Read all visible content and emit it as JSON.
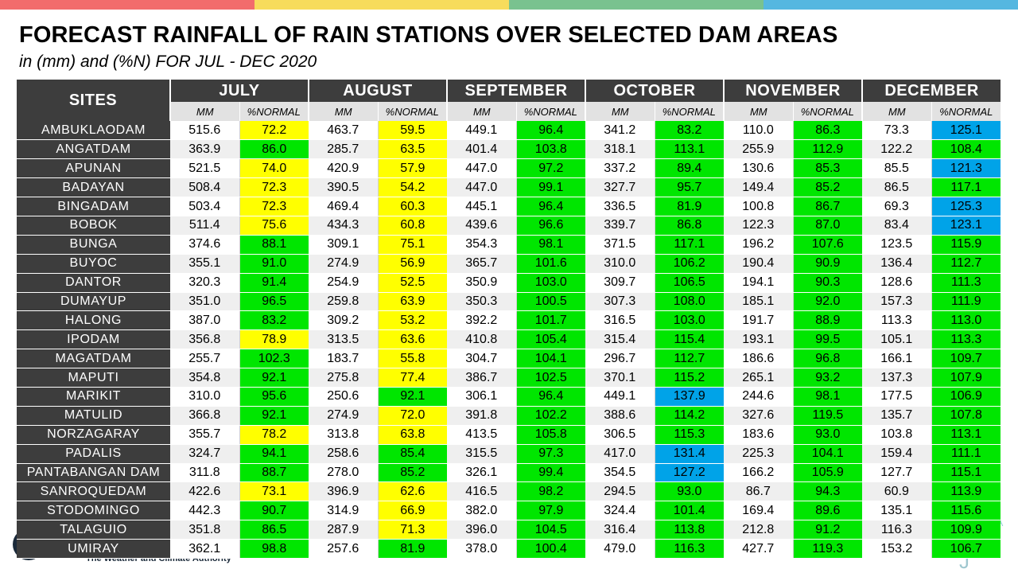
{
  "header": {
    "title": "FORECAST RAINFALL OF RAIN STATIONS OVER SELECTED DAM AREAS",
    "subtitle": "in (mm) and (%N) FOR JUL - DEC 2020"
  },
  "top_bar_colors": [
    "#f26c6c",
    "#f7dc5c",
    "#79c28f",
    "#55b7e0"
  ],
  "colors": {
    "yellow": "#ffff00",
    "green": "#00e600",
    "blue": "#00a3e8",
    "header_dark": "#3d3d3d"
  },
  "footer": {
    "logo_text": "The Weather and Climate Authority",
    "right_mark_a": "A",
    "right_mark_b": "J"
  },
  "table": {
    "sites_label": "SITES",
    "months": [
      "JULY",
      "AUGUST",
      "SEPTEMBER",
      "OCTOBER",
      "NOVEMBER",
      "DECEMBER"
    ],
    "mm_label": "MM",
    "pct_label": "%NORMAL",
    "rows": [
      {
        "site": "AMBUKLAODAM",
        "v": [
          [
            "515.6",
            "72.2",
            "yellow"
          ],
          [
            "463.7",
            "59.5",
            "yellow"
          ],
          [
            "449.1",
            "96.4",
            "green"
          ],
          [
            "341.2",
            "83.2",
            "green"
          ],
          [
            "110.0",
            "86.3",
            "green"
          ],
          [
            "73.3",
            "125.1",
            "blue"
          ]
        ]
      },
      {
        "site": "ANGATDAM",
        "v": [
          [
            "363.9",
            "86.0",
            "green"
          ],
          [
            "285.7",
            "63.5",
            "yellow"
          ],
          [
            "401.4",
            "103.8",
            "green"
          ],
          [
            "318.1",
            "113.1",
            "green"
          ],
          [
            "255.9",
            "112.9",
            "green"
          ],
          [
            "122.2",
            "108.4",
            "green"
          ]
        ]
      },
      {
        "site": "APUNAN",
        "v": [
          [
            "521.5",
            "74.0",
            "yellow"
          ],
          [
            "420.9",
            "57.9",
            "yellow"
          ],
          [
            "447.0",
            "97.2",
            "green"
          ],
          [
            "337.2",
            "89.4",
            "green"
          ],
          [
            "130.6",
            "85.3",
            "green"
          ],
          [
            "85.5",
            "121.3",
            "blue"
          ]
        ]
      },
      {
        "site": "BADAYAN",
        "v": [
          [
            "508.4",
            "72.3",
            "yellow"
          ],
          [
            "390.5",
            "54.2",
            "yellow"
          ],
          [
            "447.0",
            "99.1",
            "green"
          ],
          [
            "327.7",
            "95.7",
            "green"
          ],
          [
            "149.4",
            "85.2",
            "green"
          ],
          [
            "86.5",
            "117.1",
            "green"
          ]
        ]
      },
      {
        "site": "BINGADAM",
        "v": [
          [
            "503.4",
            "72.3",
            "yellow"
          ],
          [
            "469.4",
            "60.3",
            "yellow"
          ],
          [
            "445.1",
            "96.4",
            "green"
          ],
          [
            "336.5",
            "81.9",
            "green"
          ],
          [
            "100.8",
            "86.7",
            "green"
          ],
          [
            "69.3",
            "125.3",
            "blue"
          ]
        ]
      },
      {
        "site": "BOBOK",
        "v": [
          [
            "511.4",
            "75.6",
            "yellow"
          ],
          [
            "434.3",
            "60.8",
            "yellow"
          ],
          [
            "439.6",
            "96.6",
            "green"
          ],
          [
            "339.7",
            "86.8",
            "green"
          ],
          [
            "122.3",
            "87.0",
            "green"
          ],
          [
            "83.4",
            "123.1",
            "blue"
          ]
        ]
      },
      {
        "site": "BUNGA",
        "v": [
          [
            "374.6",
            "88.1",
            "green"
          ],
          [
            "309.1",
            "75.1",
            "yellow"
          ],
          [
            "354.3",
            "98.1",
            "green"
          ],
          [
            "371.5",
            "117.1",
            "green"
          ],
          [
            "196.2",
            "107.6",
            "green"
          ],
          [
            "123.5",
            "115.9",
            "green"
          ]
        ]
      },
      {
        "site": "BUYOC",
        "v": [
          [
            "355.1",
            "91.0",
            "green"
          ],
          [
            "274.9",
            "56.9",
            "yellow"
          ],
          [
            "365.7",
            "101.6",
            "green"
          ],
          [
            "310.0",
            "106.2",
            "green"
          ],
          [
            "190.4",
            "90.9",
            "green"
          ],
          [
            "136.4",
            "112.7",
            "green"
          ]
        ]
      },
      {
        "site": "DANTOR",
        "v": [
          [
            "320.3",
            "91.4",
            "green"
          ],
          [
            "254.9",
            "52.5",
            "yellow"
          ],
          [
            "350.9",
            "103.0",
            "green"
          ],
          [
            "309.7",
            "106.5",
            "green"
          ],
          [
            "194.1",
            "90.3",
            "green"
          ],
          [
            "128.6",
            "111.3",
            "green"
          ]
        ]
      },
      {
        "site": "DUMAYUP",
        "v": [
          [
            "351.0",
            "96.5",
            "green"
          ],
          [
            "259.8",
            "63.9",
            "yellow"
          ],
          [
            "350.3",
            "100.5",
            "green"
          ],
          [
            "307.3",
            "108.0",
            "green"
          ],
          [
            "185.1",
            "92.0",
            "green"
          ],
          [
            "157.3",
            "111.9",
            "green"
          ]
        ]
      },
      {
        "site": "HALONG",
        "v": [
          [
            "387.0",
            "83.2",
            "green"
          ],
          [
            "309.2",
            "53.2",
            "yellow"
          ],
          [
            "392.2",
            "101.7",
            "green"
          ],
          [
            "316.5",
            "103.0",
            "green"
          ],
          [
            "191.7",
            "88.9",
            "green"
          ],
          [
            "113.3",
            "113.0",
            "green"
          ]
        ]
      },
      {
        "site": "IPODAM",
        "v": [
          [
            "356.8",
            "78.9",
            "yellow"
          ],
          [
            "313.5",
            "63.6",
            "yellow"
          ],
          [
            "410.8",
            "105.4",
            "green"
          ],
          [
            "315.4",
            "115.4",
            "green"
          ],
          [
            "193.1",
            "99.5",
            "green"
          ],
          [
            "105.1",
            "113.3",
            "green"
          ]
        ]
      },
      {
        "site": "MAGATDAM",
        "v": [
          [
            "255.7",
            "102.3",
            "green"
          ],
          [
            "183.7",
            "55.8",
            "yellow"
          ],
          [
            "304.7",
            "104.1",
            "green"
          ],
          [
            "296.7",
            "112.7",
            "green"
          ],
          [
            "186.6",
            "96.8",
            "green"
          ],
          [
            "166.1",
            "109.7",
            "green"
          ]
        ]
      },
      {
        "site": "MAPUTI",
        "v": [
          [
            "354.8",
            "92.1",
            "green"
          ],
          [
            "275.8",
            "77.4",
            "yellow"
          ],
          [
            "386.7",
            "102.5",
            "green"
          ],
          [
            "370.1",
            "115.2",
            "green"
          ],
          [
            "265.1",
            "93.2",
            "green"
          ],
          [
            "137.3",
            "107.9",
            "green"
          ]
        ]
      },
      {
        "site": "MARIKIT",
        "v": [
          [
            "310.0",
            "95.6",
            "green"
          ],
          [
            "250.6",
            "92.1",
            "green"
          ],
          [
            "306.1",
            "96.4",
            "green"
          ],
          [
            "449.1",
            "137.9",
            "blue"
          ],
          [
            "244.6",
            "98.1",
            "green"
          ],
          [
            "177.5",
            "106.9",
            "green"
          ]
        ]
      },
      {
        "site": "MATULID",
        "v": [
          [
            "366.8",
            "92.1",
            "green"
          ],
          [
            "274.9",
            "72.0",
            "yellow"
          ],
          [
            "391.8",
            "102.2",
            "green"
          ],
          [
            "388.6",
            "114.2",
            "green"
          ],
          [
            "327.6",
            "119.5",
            "green"
          ],
          [
            "135.7",
            "107.8",
            "green"
          ]
        ]
      },
      {
        "site": "NORZAGARAY",
        "v": [
          [
            "355.7",
            "78.2",
            "yellow"
          ],
          [
            "313.8",
            "63.8",
            "yellow"
          ],
          [
            "413.5",
            "105.8",
            "green"
          ],
          [
            "306.5",
            "115.3",
            "green"
          ],
          [
            "183.6",
            "93.0",
            "green"
          ],
          [
            "103.8",
            "113.1",
            "green"
          ]
        ]
      },
      {
        "site": "PADALIS",
        "v": [
          [
            "324.7",
            "94.1",
            "green"
          ],
          [
            "258.6",
            "85.4",
            "green"
          ],
          [
            "315.5",
            "97.3",
            "green"
          ],
          [
            "417.0",
            "131.4",
            "blue"
          ],
          [
            "225.3",
            "104.1",
            "green"
          ],
          [
            "159.4",
            "111.1",
            "green"
          ]
        ]
      },
      {
        "site": "PANTABANGAN DAM",
        "v": [
          [
            "311.8",
            "88.7",
            "green"
          ],
          [
            "278.0",
            "85.2",
            "green"
          ],
          [
            "326.1",
            "99.4",
            "green"
          ],
          [
            "354.5",
            "127.2",
            "blue"
          ],
          [
            "166.2",
            "105.9",
            "green"
          ],
          [
            "127.7",
            "115.1",
            "green"
          ]
        ]
      },
      {
        "site": "SANROQUEDAM",
        "v": [
          [
            "422.6",
            "73.1",
            "yellow"
          ],
          [
            "396.9",
            "62.6",
            "yellow"
          ],
          [
            "416.5",
            "98.2",
            "green"
          ],
          [
            "294.5",
            "93.0",
            "green"
          ],
          [
            "86.7",
            "94.3",
            "green"
          ],
          [
            "60.9",
            "113.9",
            "green"
          ]
        ]
      },
      {
        "site": "STODOMINGO",
        "v": [
          [
            "442.3",
            "90.7",
            "green"
          ],
          [
            "314.9",
            "66.9",
            "yellow"
          ],
          [
            "382.0",
            "97.9",
            "green"
          ],
          [
            "324.4",
            "101.4",
            "green"
          ],
          [
            "169.4",
            "89.6",
            "green"
          ],
          [
            "135.1",
            "115.6",
            "green"
          ]
        ]
      },
      {
        "site": "TALAGUIO",
        "v": [
          [
            "351.8",
            "86.5",
            "green"
          ],
          [
            "287.9",
            "71.3",
            "yellow"
          ],
          [
            "396.0",
            "104.5",
            "green"
          ],
          [
            "316.4",
            "113.8",
            "green"
          ],
          [
            "212.8",
            "91.2",
            "green"
          ],
          [
            "116.3",
            "109.9",
            "green"
          ]
        ]
      },
      {
        "site": "UMIRAY",
        "v": [
          [
            "362.1",
            "98.8",
            "green"
          ],
          [
            "257.6",
            "81.9",
            "green"
          ],
          [
            "378.0",
            "100.4",
            "green"
          ],
          [
            "479.0",
            "116.3",
            "green"
          ],
          [
            "427.7",
            "119.3",
            "green"
          ],
          [
            "153.2",
            "106.7",
            "green"
          ]
        ]
      }
    ]
  }
}
